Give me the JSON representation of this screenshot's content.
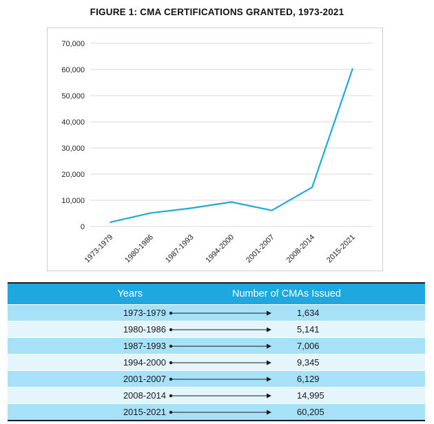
{
  "figure_title": "FIGURE 1: CMA CERTIFICATIONS GRANTED, 1973-2021",
  "colors": {
    "line": "#1fa8e0",
    "header_bg": "#1fa8e0",
    "row_dark": "#a6e1f8",
    "row_light": "#e4f5fc",
    "grid": "#d9d9d9"
  },
  "chart_data": {
    "type": "line",
    "title": "FIGURE 1: CMA CERTIFICATIONS GRANTED, 1973-2021",
    "categories": [
      "1973-1979",
      "1980-1986",
      "1987-1993",
      "1994-2000",
      "2001-2007",
      "2008-2014",
      "2015-2021"
    ],
    "series": [
      {
        "values": [
          1634,
          5141,
          7006,
          9345,
          6129,
          14995,
          60205
        ]
      }
    ],
    "ylim": [
      0,
      70000
    ],
    "yticks": [
      "0",
      "10,000",
      "20,000",
      "30,000",
      "40,000",
      "50,000",
      "60,000",
      "70,000"
    ],
    "grid": true,
    "legend": "none"
  },
  "table": {
    "headers": {
      "years": "Years",
      "count": "Number of CMAs Issued"
    },
    "rows": [
      {
        "years": "1973-1979",
        "count": "1,634"
      },
      {
        "years": "1980-1986",
        "count": "5,141"
      },
      {
        "years": "1987-1993",
        "count": "7,006"
      },
      {
        "years": "1994-2000",
        "count": "9,345"
      },
      {
        "years": "2001-2007",
        "count": "6,129"
      },
      {
        "years": "2008-2014",
        "count": "14,995"
      },
      {
        "years": "2015-2021",
        "count": "60,205"
      }
    ]
  }
}
